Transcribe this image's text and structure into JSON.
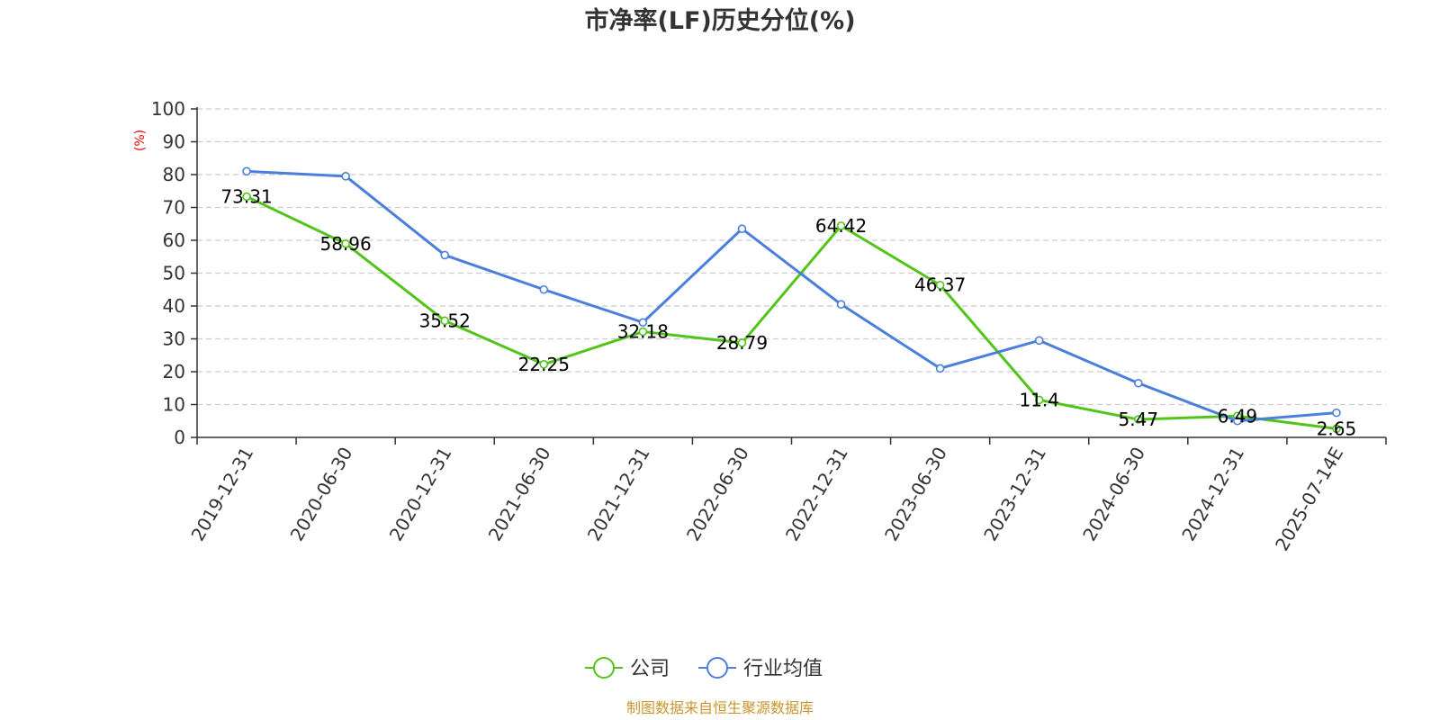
{
  "chart_data": {
    "type": "line",
    "title": "市净率(LF)历史分位(%)",
    "ylabel": "(%)",
    "ylim": [
      0,
      100
    ],
    "yticks": [
      0,
      10,
      20,
      30,
      40,
      50,
      60,
      70,
      80,
      90,
      100
    ],
    "grid": true,
    "legend_position": "bottom-center",
    "categories": [
      "2019-12-31",
      "2020-06-30",
      "2020-12-31",
      "2021-06-30",
      "2021-12-31",
      "2022-06-30",
      "2022-12-31",
      "2023-06-30",
      "2023-12-31",
      "2024-06-30",
      "2024-12-31",
      "2025-07-14E"
    ],
    "series": [
      {
        "name": "公司",
        "color": "#52c41a",
        "values": [
          73.31,
          58.96,
          35.52,
          22.25,
          32.18,
          28.79,
          64.42,
          46.37,
          11.4,
          5.47,
          6.49,
          2.65
        ],
        "labels": [
          "73.31",
          "58.96",
          "35.52",
          "22.25",
          "32.18",
          "28.79",
          "64.42",
          "46.37",
          "11.4",
          "5.47",
          "6.49",
          "2.65"
        ]
      },
      {
        "name": "行业均值",
        "color": "#4a7fdb",
        "values": [
          81,
          79.5,
          55.5,
          45,
          35,
          63.5,
          40.5,
          21,
          29.5,
          16.5,
          5,
          7.5
        ]
      }
    ],
    "source": "制图数据来自恒生聚源数据库"
  }
}
